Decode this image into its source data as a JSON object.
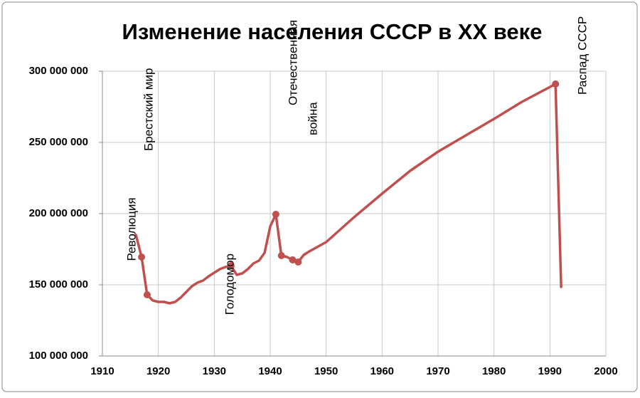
{
  "chart_data": {
    "type": "line",
    "title": "Изменение населения СССР в XX веке",
    "x": [
      1916,
      1917,
      1918,
      1919,
      1920,
      1921,
      1922,
      1923,
      1924,
      1925,
      1926,
      1927,
      1928,
      1929,
      1930,
      1931,
      1932,
      1933,
      1934,
      1935,
      1936,
      1937,
      1938,
      1939,
      1940,
      1941,
      1942,
      1943,
      1944,
      1945,
      1946,
      1947,
      1950,
      1955,
      1960,
      1965,
      1970,
      1975,
      1980,
      1985,
      1991,
      1992
    ],
    "series": [
      {
        "color": "#c0504d",
        "values": [
          185000000,
          169500000,
          143000000,
          139000000,
          138000000,
          138000000,
          137000000,
          138000000,
          141000000,
          145000000,
          149000000,
          151500000,
          153000000,
          156000000,
          158500000,
          161000000,
          162500000,
          163500000,
          157000000,
          158000000,
          161000000,
          165000000,
          167000000,
          172500000,
          191000000,
          199500000,
          170500000,
          169500000,
          167500000,
          166000000,
          171000000,
          173500000,
          180000000,
          197500000,
          214000000,
          230000000,
          243500000,
          255000000,
          266500000,
          278500000,
          291000000,
          148500000
        ]
      },
      {
        "color": "#c0504d",
        "marker": true,
        "x": [
          1917,
          1918,
          1933,
          1941,
          1942,
          1944,
          1945,
          1991
        ],
        "values": [
          169500000,
          143000000,
          163500000,
          199500000,
          170500000,
          167500000,
          166000000,
          291000000
        ]
      }
    ],
    "annotations": [
      "Революция",
      "Брестский мир",
      "Голодомор",
      "Отечественная",
      "война",
      "Распад СССР"
    ],
    "xlim": [
      1910,
      2000
    ],
    "xticks": [
      1910,
      1920,
      1930,
      1940,
      1950,
      1960,
      1970,
      1980,
      1990,
      2000
    ],
    "ylim": [
      100000000,
      300000000
    ],
    "yticks": [
      {
        "value": 100000000,
        "label": "100 000 000"
      },
      {
        "value": 150000000,
        "label": "150 000 000"
      },
      {
        "value": 200000000,
        "label": "200 000 000"
      },
      {
        "value": 250000000,
        "label": "250 000 000"
      },
      {
        "value": 300000000,
        "label": "300 000 000"
      }
    ],
    "grid": true
  }
}
